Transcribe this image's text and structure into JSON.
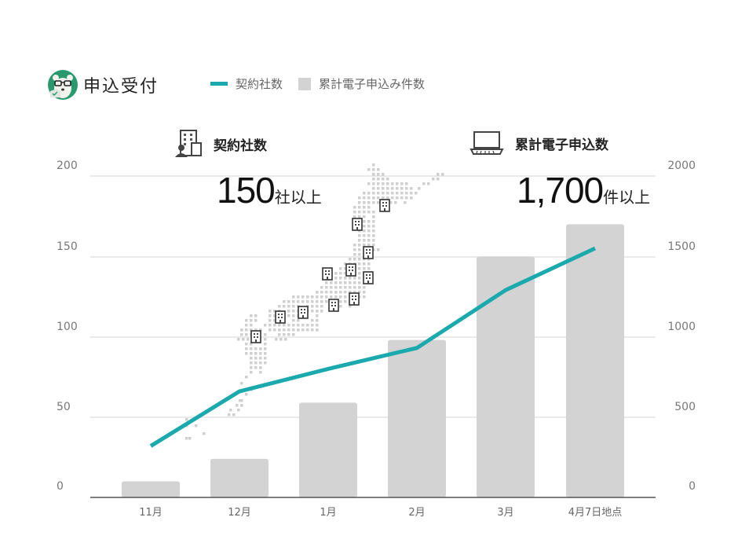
{
  "brand": {
    "title": "申込受付",
    "logo_icon": "bear-mascot-icon"
  },
  "legend": {
    "line_label": "契約社数",
    "bar_label": "累計電子申込み件数"
  },
  "stats": {
    "companies": {
      "icon": "office-building-icon",
      "label": "契約社数",
      "value": "150",
      "suffix": "社以上"
    },
    "applications": {
      "icon": "laptop-icon",
      "label": "累計電子申込数",
      "value": "1,700",
      "suffix": "件以上"
    }
  },
  "colors": {
    "line": "#1aa9ad",
    "bar": "#d3d3d3",
    "grid": "#d6d6d6",
    "axis": "#555555"
  },
  "axes": {
    "left_ticks": [
      "200",
      "150",
      "100",
      "50",
      "0"
    ],
    "right_ticks": [
      "2000",
      "1500",
      "1000",
      "500",
      "0"
    ],
    "x_labels": [
      "11月",
      "12月",
      "1月",
      "2月",
      "3月",
      "4月7日地点"
    ]
  },
  "chart_data": {
    "type": "bar+line",
    "title": "",
    "categories": [
      "11月",
      "12月",
      "1月",
      "2月",
      "3月",
      "4月7日地点"
    ],
    "series": [
      {
        "name": "累計電子申込み件数",
        "type": "bar",
        "axis": "right",
        "values": [
          100,
          240,
          590,
          980,
          1500,
          1700
        ]
      },
      {
        "name": "契約社数",
        "type": "line",
        "axis": "left",
        "values": [
          32,
          66,
          80,
          93,
          129,
          155
        ]
      }
    ],
    "ylim_left": [
      0,
      200
    ],
    "ylim_right": [
      0,
      2000
    ],
    "xlabel": "",
    "ylabel": "",
    "grid": true,
    "legend_position": "top",
    "annotations": [
      "契約社数 150社以上",
      "累計電子申込数 1,700件以上"
    ]
  }
}
